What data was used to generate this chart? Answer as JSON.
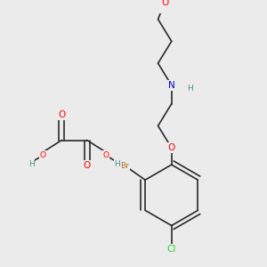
{
  "bg_color": "#ebebeb",
  "bond_color": "#2a2a2a",
  "bond_lw": 1.2,
  "atom_colors": {
    "O": "#ff0000",
    "N": "#0000cc",
    "Br": "#b87333",
    "Cl": "#33cc33",
    "H": "#4a9090",
    "C": "#2a2a2a"
  },
  "fs_large": 7.5,
  "fs_small": 6.5,
  "fs_tiny": 6.0
}
